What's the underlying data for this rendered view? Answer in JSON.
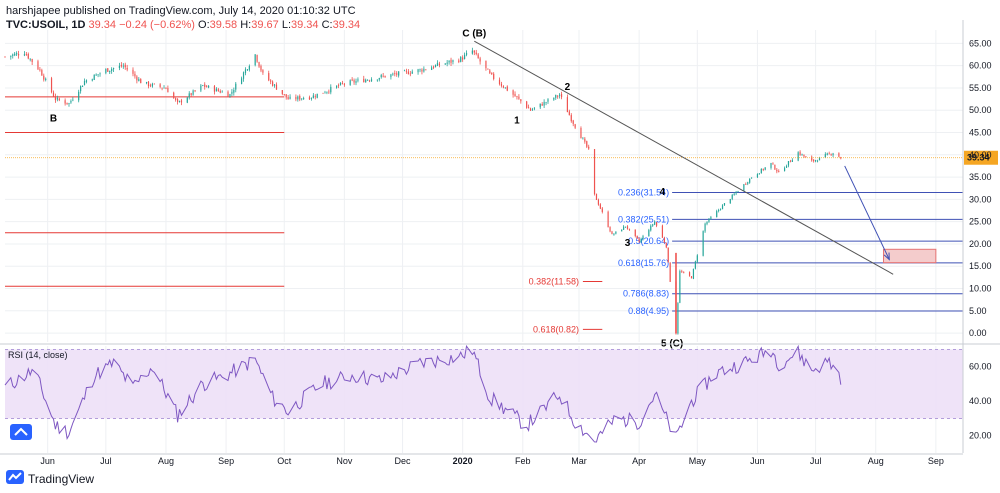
{
  "header": {
    "line1": "harshjapee published on TradingView.com, July 14, 2020 01:10:32 UTC",
    "symbol": "TVC:USOIL, 1D",
    "last": "39.34",
    "change": "−0.24 (−0.62%)",
    "open_label": "O:",
    "open": "39.58",
    "high_label": "H:",
    "high": "39.67",
    "low_label": "L:",
    "low": "39.34",
    "close_label": "C:",
    "close": "39.34"
  },
  "footer": {
    "brand": "TradingView"
  },
  "chart_data": [
    {
      "type": "candlestick",
      "symbol": "TVC:USOIL",
      "interval": "1D",
      "ylim": [
        -2,
        68
      ],
      "y_ticks": [
        0,
        5,
        10,
        15,
        20,
        25,
        30,
        35,
        40,
        45,
        50,
        55,
        60,
        65
      ],
      "y_tick_labels": [
        "0.00",
        "5.00",
        "10.00",
        "15.00",
        "20.00",
        "25.00",
        "30.00",
        "35.00",
        "40.00",
        "45.00",
        "50.00",
        "55.00",
        "60.00",
        "65.00"
      ],
      "x_labels": [
        "Jun",
        "Jul",
        "Aug",
        "Sep",
        "Oct",
        "Nov",
        "Dec",
        "2020",
        "Feb",
        "Mar",
        "Apr",
        "May",
        "Jun",
        "Jul",
        "Aug",
        "Sep"
      ],
      "x_label_dates": [
        "2019-06-01",
        "2019-07-01",
        "2019-08-01",
        "2019-09-01",
        "2019-10-01",
        "2019-11-01",
        "2019-12-01",
        "2020-01-01",
        "2020-02-01",
        "2020-03-01",
        "2020-04-01",
        "2020-05-01",
        "2020-06-01",
        "2020-07-01",
        "2020-08-01",
        "2020-09-01"
      ],
      "x_range": [
        "2019-05-10",
        "2020-09-15"
      ],
      "price_path": [
        [
          "2019-05-10",
          62.0
        ],
        [
          "2019-05-20",
          63.0
        ],
        [
          "2019-05-28",
          59.0
        ],
        [
          "2019-06-05",
          52.5
        ],
        [
          "2019-06-12",
          51.5
        ],
        [
          "2019-06-20",
          56.5
        ],
        [
          "2019-07-01",
          59.0
        ],
        [
          "2019-07-10",
          60.0
        ],
        [
          "2019-07-20",
          56.0
        ],
        [
          "2019-08-01",
          55.0
        ],
        [
          "2019-08-07",
          51.5
        ],
        [
          "2019-08-20",
          55.5
        ],
        [
          "2019-09-03",
          53.5
        ],
        [
          "2019-09-16",
          62.5
        ],
        [
          "2019-09-20",
          58.0
        ],
        [
          "2019-10-03",
          52.5
        ],
        [
          "2019-10-15",
          53.0
        ],
        [
          "2019-11-01",
          56.0
        ],
        [
          "2019-11-20",
          57.5
        ],
        [
          "2019-12-10",
          59.0
        ],
        [
          "2019-12-31",
          61.5
        ],
        [
          "2020-01-06",
          63.3
        ],
        [
          "2020-01-15",
          58.0
        ],
        [
          "2020-01-31",
          52.0
        ],
        [
          "2020-02-05",
          50.0
        ],
        [
          "2020-02-20",
          53.5
        ],
        [
          "2020-02-26",
          48.0
        ],
        [
          "2020-03-06",
          41.0
        ],
        [
          "2020-03-09",
          31.0
        ],
        [
          "2020-03-18",
          22.0
        ],
        [
          "2020-03-25",
          24.0
        ],
        [
          "2020-04-01",
          20.5
        ],
        [
          "2020-04-09",
          25.0
        ],
        [
          "2020-04-15",
          19.5
        ],
        [
          "2020-04-20",
          0.0
        ],
        [
          "2020-04-22",
          13.8
        ],
        [
          "2020-04-28",
          12.5
        ],
        [
          "2020-05-05",
          24.5
        ],
        [
          "2020-05-15",
          29.0
        ],
        [
          "2020-05-29",
          35.0
        ],
        [
          "2020-06-08",
          38.0
        ],
        [
          "2020-06-12",
          36.0
        ],
        [
          "2020-06-22",
          40.5
        ],
        [
          "2020-06-29",
          38.5
        ],
        [
          "2020-07-10",
          40.5
        ],
        [
          "2020-07-14",
          39.34
        ]
      ],
      "last_price_label": "39.34",
      "trendline": {
        "from": [
          "2020-01-07",
          65.5
        ],
        "to": [
          "2020-08-10",
          13.2
        ]
      },
      "arrow": {
        "from": [
          "2020-07-16",
          37.5
        ],
        "to": [
          "2020-08-08",
          16.5
        ]
      },
      "target_box": {
        "x0": "2020-08-05",
        "x1": "2020-09-01",
        "y0": 15.8,
        "y1": 18.8
      },
      "support_lines": [
        {
          "price": 53.0,
          "x0": "2019-05-10",
          "x1": "2019-10-01"
        },
        {
          "price": 45.0,
          "x0": "2019-05-10",
          "x1": "2019-10-01"
        },
        {
          "price": 22.5,
          "x0": "2019-05-10",
          "x1": "2019-10-01"
        },
        {
          "price": 10.5,
          "x0": "2019-05-10",
          "x1": "2019-10-01"
        }
      ],
      "fib_retracements": [
        {
          "ratio": "0.236",
          "price": "31.54"
        },
        {
          "ratio": "0.382",
          "price": "25.51"
        },
        {
          "ratio": "0.5",
          "price": "20.64"
        },
        {
          "ratio": "0.618",
          "price": "15.76"
        },
        {
          "ratio": "0.786",
          "price": "8.83"
        },
        {
          "ratio": "0.88",
          "price": "4.95"
        }
      ],
      "fib_extensions": [
        {
          "ratio": "0.382",
          "price": "11.58"
        },
        {
          "ratio": "0.618",
          "price": "0.82"
        }
      ],
      "wave_labels": [
        {
          "text": "C (B)",
          "date": "2020-01-07",
          "price": 66.5
        },
        {
          "text": "B",
          "date": "2019-06-04",
          "price": 47.5
        },
        {
          "text": "1",
          "date": "2020-01-29",
          "price": 47.0
        },
        {
          "text": "2",
          "date": "2020-02-24",
          "price": 54.5
        },
        {
          "text": "3",
          "date": "2020-03-26",
          "price": 19.5
        },
        {
          "text": "4",
          "date": "2020-04-13",
          "price": 31.0
        },
        {
          "text": "5 (C)",
          "date": "2020-04-18",
          "price": -3.0
        }
      ],
      "colors": {
        "up": "#26a69a",
        "down": "#ef5350",
        "support": "#e53935",
        "fib_line": "#3f51b5",
        "fib_text": "#2962ff",
        "ext_text": "#e53935",
        "trend": "#555555",
        "box_fill": "#f4cccc",
        "box_stroke": "#e57373",
        "price_line": "#f5a623"
      }
    },
    {
      "type": "line",
      "title": "RSI (14, close)",
      "ylim": [
        10,
        72
      ],
      "y_ticks": [
        20,
        40,
        60
      ],
      "y_tick_labels": [
        "20.00",
        "40.00",
        "60.00"
      ],
      "band": [
        30,
        70
      ],
      "rsi_path": [
        [
          "2019-05-10",
          48
        ],
        [
          "2019-05-25",
          58
        ],
        [
          "2019-06-05",
          26
        ],
        [
          "2019-06-12",
          22
        ],
        [
          "2019-06-25",
          55
        ],
        [
          "2019-07-05",
          62
        ],
        [
          "2019-07-15",
          48
        ],
        [
          "2019-07-25",
          60
        ],
        [
          "2019-08-07",
          32
        ],
        [
          "2019-08-20",
          50
        ],
        [
          "2019-09-01",
          55
        ],
        [
          "2019-09-16",
          64
        ],
        [
          "2019-09-25",
          42
        ],
        [
          "2019-10-03",
          34
        ],
        [
          "2019-10-20",
          50
        ],
        [
          "2019-11-05",
          55
        ],
        [
          "2019-11-20",
          52
        ],
        [
          "2019-12-10",
          62
        ],
        [
          "2019-12-31",
          66
        ],
        [
          "2020-01-06",
          70
        ],
        [
          "2020-01-15",
          42
        ],
        [
          "2020-02-03",
          26
        ],
        [
          "2020-02-20",
          44
        ],
        [
          "2020-02-28",
          28
        ],
        [
          "2020-03-09",
          17
        ],
        [
          "2020-03-20",
          30
        ],
        [
          "2020-04-01",
          28
        ],
        [
          "2020-04-09",
          44
        ],
        [
          "2020-04-20",
          18
        ],
        [
          "2020-04-28",
          40
        ],
        [
          "2020-05-10",
          56
        ],
        [
          "2020-05-29",
          64
        ],
        [
          "2020-06-08",
          70
        ],
        [
          "2020-06-12",
          62
        ],
        [
          "2020-06-22",
          68
        ],
        [
          "2020-06-29",
          58
        ],
        [
          "2020-07-08",
          63
        ],
        [
          "2020-07-14",
          54
        ]
      ]
    }
  ]
}
